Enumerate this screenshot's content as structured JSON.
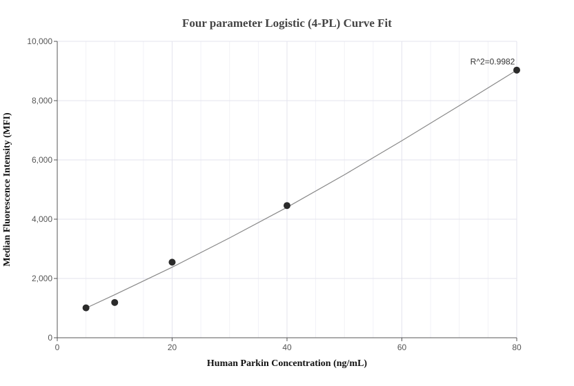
{
  "chart_data": {
    "type": "scatter",
    "title": "Four parameter Logistic (4-PL) Curve Fit",
    "xlabel": "Human Parkin Concentration (ng/mL)",
    "ylabel": "Median Fluorescence Intensity (MFI)",
    "xlim": [
      0,
      80
    ],
    "ylim": [
      0,
      10000
    ],
    "x_ticks": [
      0,
      20,
      40,
      60,
      80
    ],
    "x_tick_labels": [
      "0",
      "20",
      "40",
      "60",
      "80"
    ],
    "y_ticks": [
      0,
      2000,
      4000,
      6000,
      8000,
      10000
    ],
    "y_tick_labels": [
      "0",
      "2,000",
      "4,000",
      "6,000",
      "8,000",
      "10,000"
    ],
    "grid": true,
    "series": [
      {
        "x": [
          5,
          10,
          20,
          40,
          80
        ],
        "y": [
          1010,
          1190,
          2550,
          4460,
          9030
        ],
        "color": "#2b2b2b"
      }
    ],
    "fit_curve": {
      "x": [
        5,
        10,
        20,
        30,
        40,
        50,
        60,
        70,
        80
      ],
      "y": [
        1000,
        1450,
        2380,
        3370,
        4400,
        5500,
        6650,
        7830,
        9030
      ],
      "color": "#888888"
    },
    "annotations": [
      {
        "text": "R^2=0.9982",
        "x": 80,
        "y": 9030
      }
    ]
  }
}
